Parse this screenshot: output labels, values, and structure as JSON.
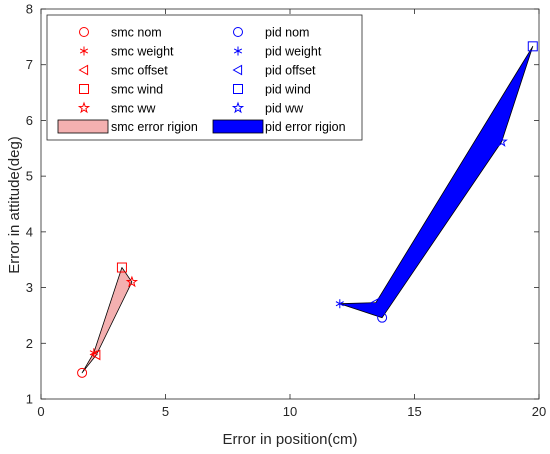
{
  "chart_data": {
    "type": "scatter",
    "xlabel": "Error in position(cm)",
    "ylabel": "Error in attitude(deg)",
    "xlim": [
      0,
      20
    ],
    "ylim": [
      1,
      8
    ],
    "xticks": [
      "0",
      "5",
      "10",
      "15",
      "20"
    ],
    "yticks": [
      "1",
      "2",
      "3",
      "4",
      "5",
      "6",
      "7",
      "8"
    ],
    "grid": false,
    "legend": "top-left, two columns",
    "series": [
      {
        "name": "smc nom",
        "marker": "circle",
        "color": "#ff0000",
        "points": [
          [
            1.65,
            1.47
          ]
        ]
      },
      {
        "name": "smc weight",
        "marker": "asterisk",
        "color": "#ff0000",
        "points": [
          [
            2.12,
            1.83
          ]
        ]
      },
      {
        "name": "smc offset",
        "marker": "triangle-left",
        "color": "#ff0000",
        "points": [
          [
            2.22,
            1.79
          ]
        ]
      },
      {
        "name": "smc wind",
        "marker": "square",
        "color": "#ff0000",
        "points": [
          [
            3.25,
            3.36
          ]
        ]
      },
      {
        "name": "smc ww",
        "marker": "star",
        "color": "#ff0000",
        "points": [
          [
            3.65,
            3.1
          ]
        ]
      },
      {
        "name": "pid nom",
        "marker": "circle",
        "color": "#0000ff",
        "points": [
          [
            13.7,
            2.46
          ]
        ]
      },
      {
        "name": "pid weight",
        "marker": "asterisk",
        "color": "#0000ff",
        "points": [
          [
            12.0,
            2.71
          ]
        ]
      },
      {
        "name": "pid offset",
        "marker": "triangle-left",
        "color": "#0000ff",
        "points": [
          [
            13.45,
            2.73
          ]
        ]
      },
      {
        "name": "pid wind",
        "marker": "square",
        "color": "#0000ff",
        "points": [
          [
            19.75,
            7.33
          ]
        ]
      },
      {
        "name": "pid ww",
        "marker": "star",
        "color": "#0000ff",
        "points": [
          [
            18.5,
            5.62
          ]
        ]
      }
    ],
    "regions": [
      {
        "name": "smc error rigion",
        "fill": "#f4b0b0",
        "edge": "#000000",
        "polygon": [
          [
            1.65,
            1.47
          ],
          [
            2.12,
            1.83
          ],
          [
            3.25,
            3.36
          ],
          [
            3.65,
            3.1
          ],
          [
            2.22,
            1.79
          ]
        ]
      },
      {
        "name": "pid error rigion",
        "fill": "#0000ff",
        "edge": "#000000",
        "polygon": [
          [
            13.7,
            2.46
          ],
          [
            12.0,
            2.71
          ],
          [
            13.45,
            2.73
          ],
          [
            19.75,
            7.33
          ],
          [
            18.5,
            5.62
          ]
        ]
      }
    ]
  }
}
